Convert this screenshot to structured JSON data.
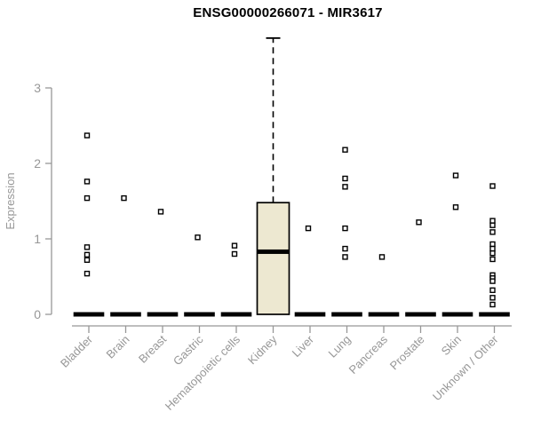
{
  "chart_data": {
    "type": "boxplot",
    "title": "ENSG00000266071 - MIR3617",
    "xlabel": "",
    "ylabel": "Expression",
    "ylim": [
      0,
      3.8
    ],
    "yticks": [
      0,
      1,
      2,
      3
    ],
    "grid": false,
    "legend": "none",
    "colors": {
      "box_fill": "#ede8d1",
      "box_border": "#000000",
      "median": "#000000",
      "outlier": "#000000",
      "axis": "#979797",
      "title": "#000000"
    },
    "categories": [
      "Bladder",
      "Brain",
      "Breast",
      "Gastric",
      "Hematopoietic cells",
      "Kidney",
      "Liver",
      "Lung",
      "Pancreas",
      "Prostate",
      "Skin",
      "Unknown / Other"
    ],
    "series": [
      {
        "category": "Bladder",
        "box": {
          "q1": 0,
          "median": 0,
          "q3": 0,
          "whisker_low": 0,
          "whisker_high": 0
        },
        "outliers": [
          2.37,
          1.76,
          1.54,
          0.89,
          0.79,
          0.72,
          0.54
        ]
      },
      {
        "category": "Brain",
        "box": {
          "q1": 0,
          "median": 0,
          "q3": 0,
          "whisker_low": 0,
          "whisker_high": 0
        },
        "outliers": [
          1.54
        ]
      },
      {
        "category": "Breast",
        "box": {
          "q1": 0,
          "median": 0,
          "q3": 0,
          "whisker_low": 0,
          "whisker_high": 0
        },
        "outliers": [
          1.36
        ]
      },
      {
        "category": "Gastric",
        "box": {
          "q1": 0,
          "median": 0,
          "q3": 0,
          "whisker_low": 0,
          "whisker_high": 0
        },
        "outliers": [
          1.02
        ]
      },
      {
        "category": "Hematopoietic cells",
        "box": {
          "q1": 0,
          "median": 0,
          "q3": 0,
          "whisker_low": 0,
          "whisker_high": 0
        },
        "outliers": [
          0.91,
          0.8
        ]
      },
      {
        "category": "Kidney",
        "box": {
          "q1": 0,
          "median": 0.83,
          "q3": 1.48,
          "whisker_low": 0,
          "whisker_high": 3.66
        },
        "outliers": []
      },
      {
        "category": "Liver",
        "box": {
          "q1": 0,
          "median": 0,
          "q3": 0,
          "whisker_low": 0,
          "whisker_high": 0
        },
        "outliers": [
          1.14
        ]
      },
      {
        "category": "Lung",
        "box": {
          "q1": 0,
          "median": 0,
          "q3": 0,
          "whisker_low": 0,
          "whisker_high": 0
        },
        "outliers": [
          2.18,
          1.8,
          1.69,
          1.14,
          0.87,
          0.76
        ]
      },
      {
        "category": "Pancreas",
        "box": {
          "q1": 0,
          "median": 0,
          "q3": 0,
          "whisker_low": 0,
          "whisker_high": 0
        },
        "outliers": [
          0.76
        ]
      },
      {
        "category": "Prostate",
        "box": {
          "q1": 0,
          "median": 0,
          "q3": 0,
          "whisker_low": 0,
          "whisker_high": 0
        },
        "outliers": [
          1.22
        ]
      },
      {
        "category": "Skin",
        "box": {
          "q1": 0,
          "median": 0,
          "q3": 0,
          "whisker_low": 0,
          "whisker_high": 0
        },
        "outliers": [
          1.84,
          1.42
        ]
      },
      {
        "category": "Unknown / Other",
        "box": {
          "q1": 0,
          "median": 0,
          "q3": 0,
          "whisker_low": 0,
          "whisker_high": 0
        },
        "outliers": [
          1.7,
          1.24,
          1.18,
          1.09,
          0.93,
          0.87,
          0.81,
          0.73,
          0.52,
          0.48,
          0.44,
          0.32,
          0.22,
          0.13
        ]
      }
    ]
  }
}
